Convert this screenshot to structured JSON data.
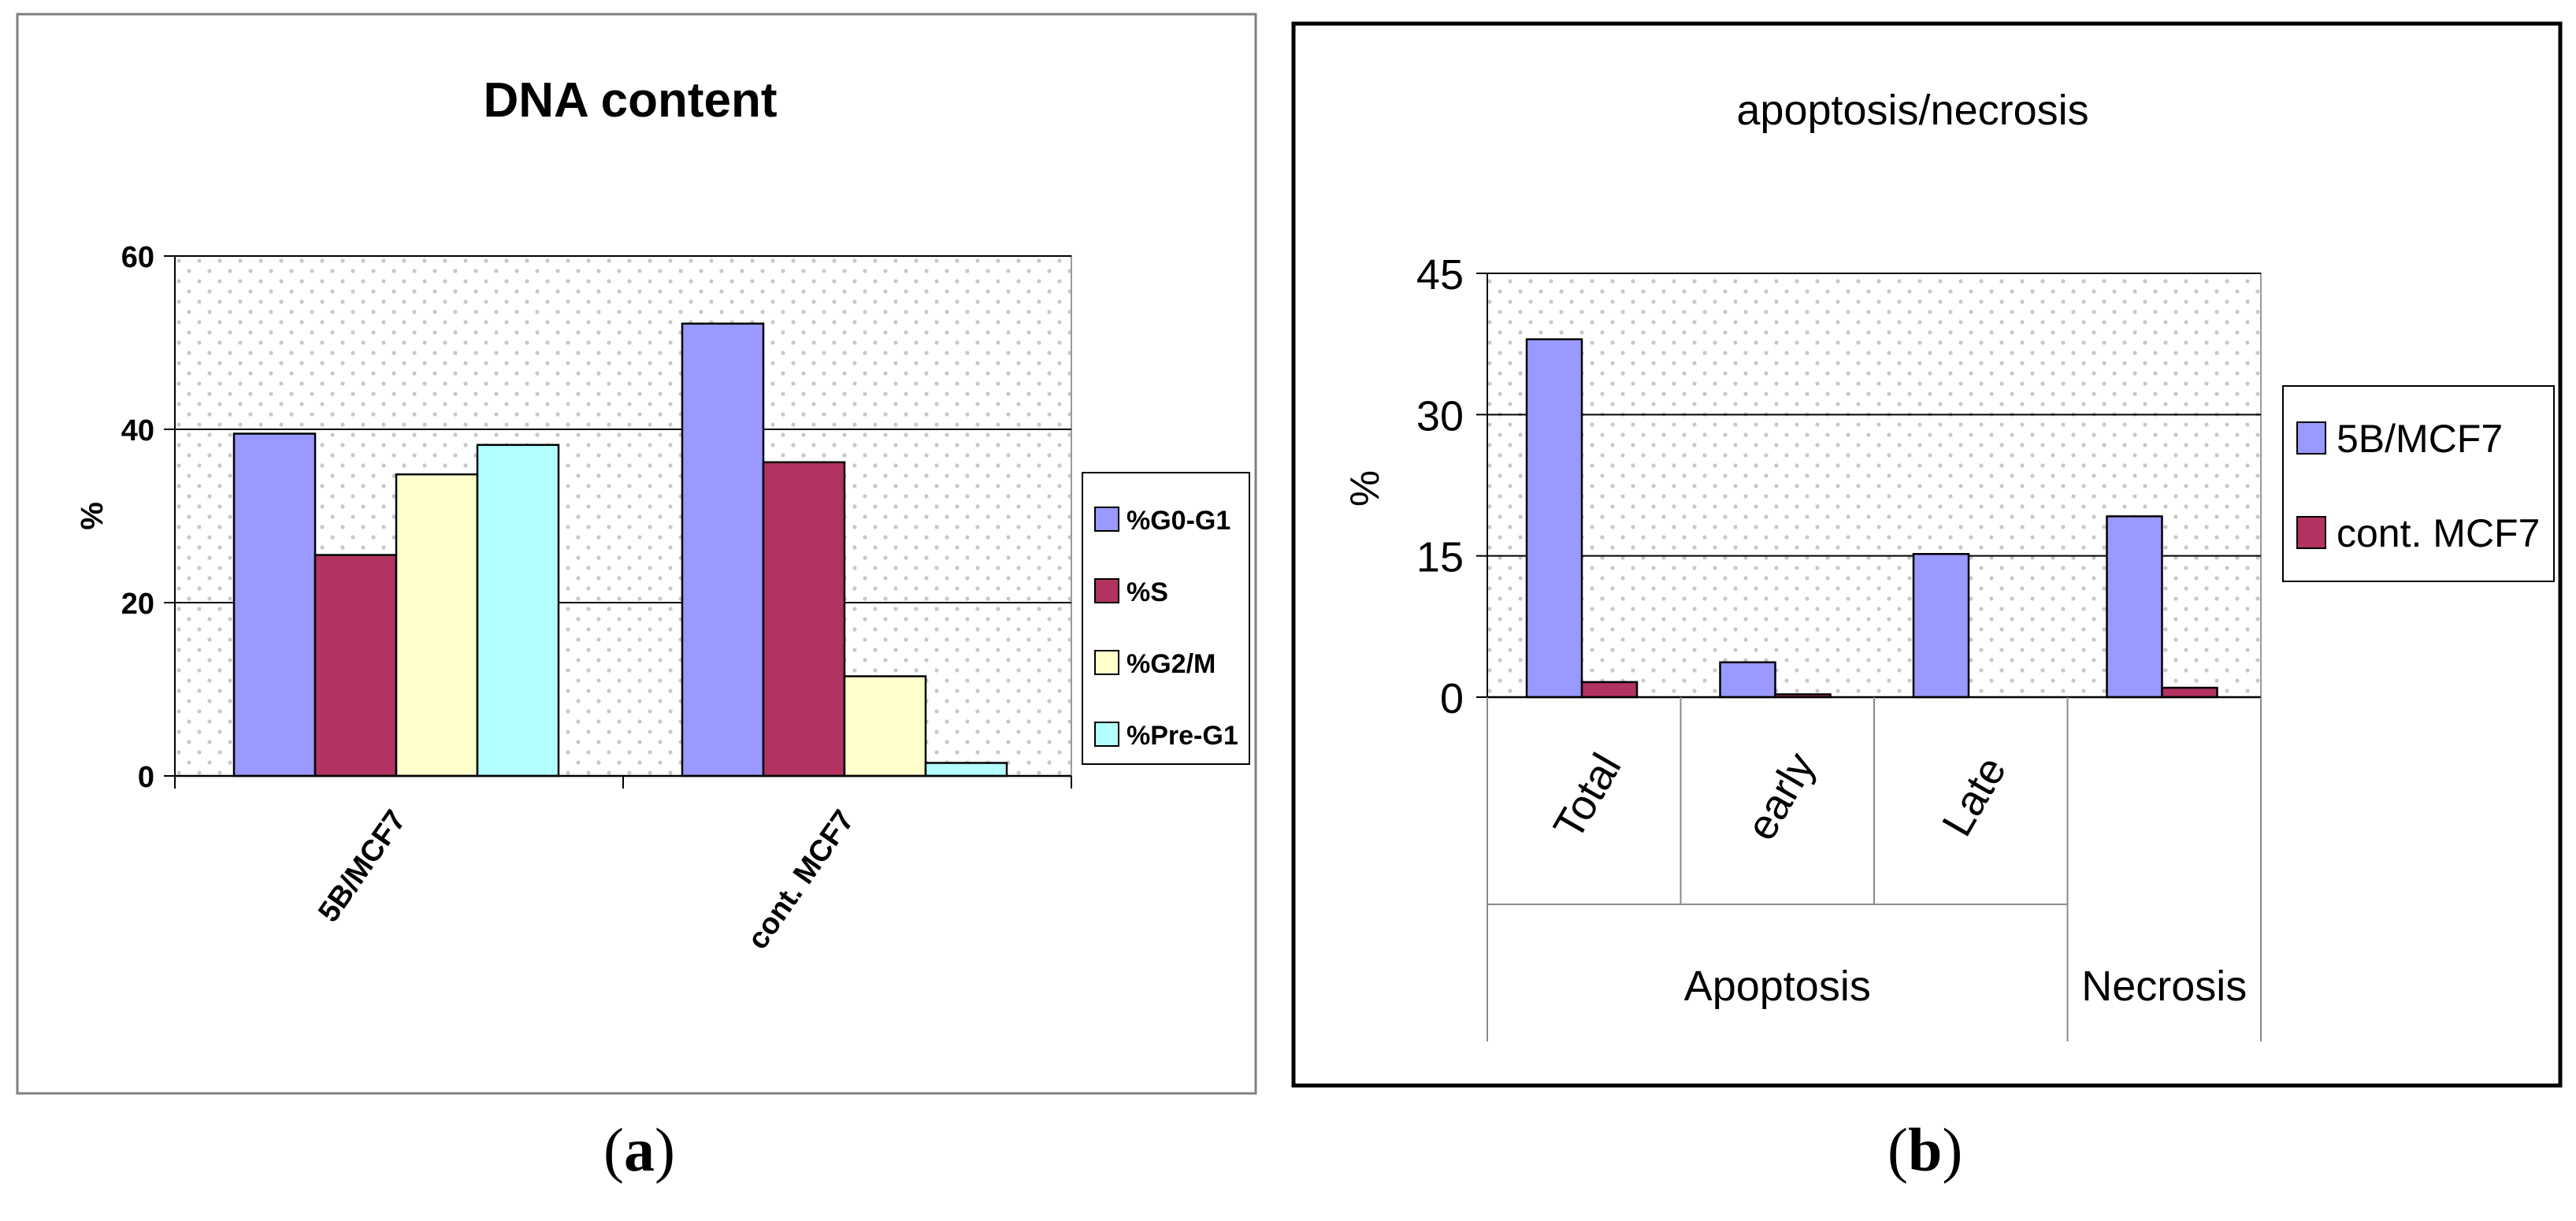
{
  "colors": {
    "g0g1": "#9999ff",
    "s": "#b23261",
    "g2m": "#ffffcc",
    "preg1": "#b3ffff",
    "pattern_dot": "#c8c8c8",
    "frame_a": "#808080",
    "frame_b": "#000000"
  },
  "chart_data": [
    {
      "type": "bar",
      "title": "DNA content",
      "xlabel": "",
      "ylabel": "%",
      "ylim": [
        0,
        60
      ],
      "yticks": [
        "0",
        "20",
        "40",
        "60"
      ],
      "grid": true,
      "legend": "right",
      "categories": [
        "5B/MCF7",
        "cont. MCF7"
      ],
      "series": [
        {
          "name": "%G0-G1",
          "values": [
            39.5,
            52.2
          ]
        },
        {
          "name": "%S",
          "values": [
            25.5,
            36.2
          ]
        },
        {
          "name": "%G2/M",
          "values": [
            34.8,
            11.5
          ]
        },
        {
          "name": "%Pre-G1",
          "values": [
            38.2,
            1.5
          ]
        }
      ]
    },
    {
      "type": "bar",
      "title": "apoptosis/necrosis",
      "xlabel": "",
      "ylabel": "%",
      "ylim": [
        0,
        45
      ],
      "yticks": [
        "0",
        "15",
        "30",
        "45"
      ],
      "grid": true,
      "legend": "right",
      "categories": [
        "Total",
        "early",
        "Late",
        "Necrosis"
      ],
      "groups": [
        {
          "label": "Apoptosis",
          "span": 3
        },
        {
          "label": "Necrosis",
          "span": 1
        }
      ],
      "series": [
        {
          "name": "5B/MCF7",
          "values": [
            38.0,
            3.7,
            15.2,
            19.2
          ]
        },
        {
          "name": "cont. MCF7",
          "values": [
            1.6,
            0.3,
            0.0,
            1.0
          ]
        }
      ]
    }
  ],
  "captions": {
    "a_label": "a",
    "b_label": "b"
  }
}
